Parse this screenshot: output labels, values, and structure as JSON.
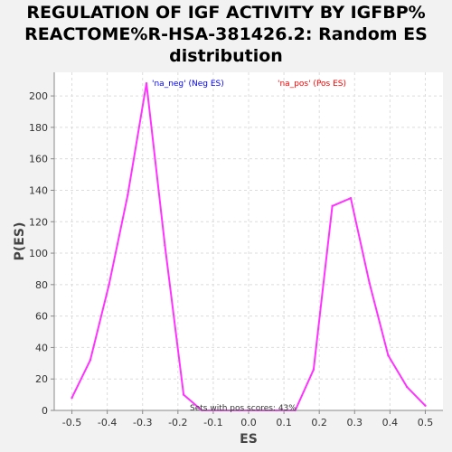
{
  "title_lines": [
    "REGULATION OF IGF ACTIVITY BY IGFBP%",
    "REACTOME%R-HSA-381426.2: Random ES",
    "distribution"
  ],
  "chart_data": {
    "type": "line",
    "xlabel": "ES",
    "ylabel": "P(ES)",
    "xlim": [
      -0.55,
      0.55
    ],
    "ylim": [
      0,
      215
    ],
    "xticks": [
      -0.5,
      -0.4,
      -0.3,
      -0.2,
      -0.1,
      0.0,
      0.1,
      0.2,
      0.3,
      0.4,
      0.5
    ],
    "xtick_labels": [
      "-0.5",
      "-0.4",
      "-0.3",
      "-0.2",
      "-0.1",
      "0.0",
      "0.1",
      "0.2",
      "0.3",
      "0.4",
      "0.5"
    ],
    "yticks": [
      0,
      20,
      40,
      60,
      80,
      100,
      120,
      140,
      160,
      180,
      200
    ],
    "grid": true,
    "line_color": "#ff33ff",
    "series": [
      {
        "x": [
          -0.5,
          -0.448,
          -0.395,
          -0.342,
          -0.289,
          -0.237,
          -0.184,
          -0.132,
          -0.079,
          -0.026,
          0.026,
          0.079,
          0.132,
          0.184,
          0.237,
          0.289,
          0.342,
          0.395,
          0.448,
          0.5
        ],
        "values": [
          8,
          32,
          80,
          137,
          208,
          105,
          10,
          0,
          0,
          0,
          0,
          0,
          0,
          26,
          130,
          135,
          81,
          35,
          15,
          3
        ]
      }
    ],
    "annotations": {
      "neg_label": "'na_neg' (Neg ES)",
      "neg_color": "#0000ff",
      "pos_label": "'na_pos' (Pos ES)",
      "pos_color": "#ff0000",
      "bottom_text": "Sets with pos scores: 43%"
    }
  }
}
